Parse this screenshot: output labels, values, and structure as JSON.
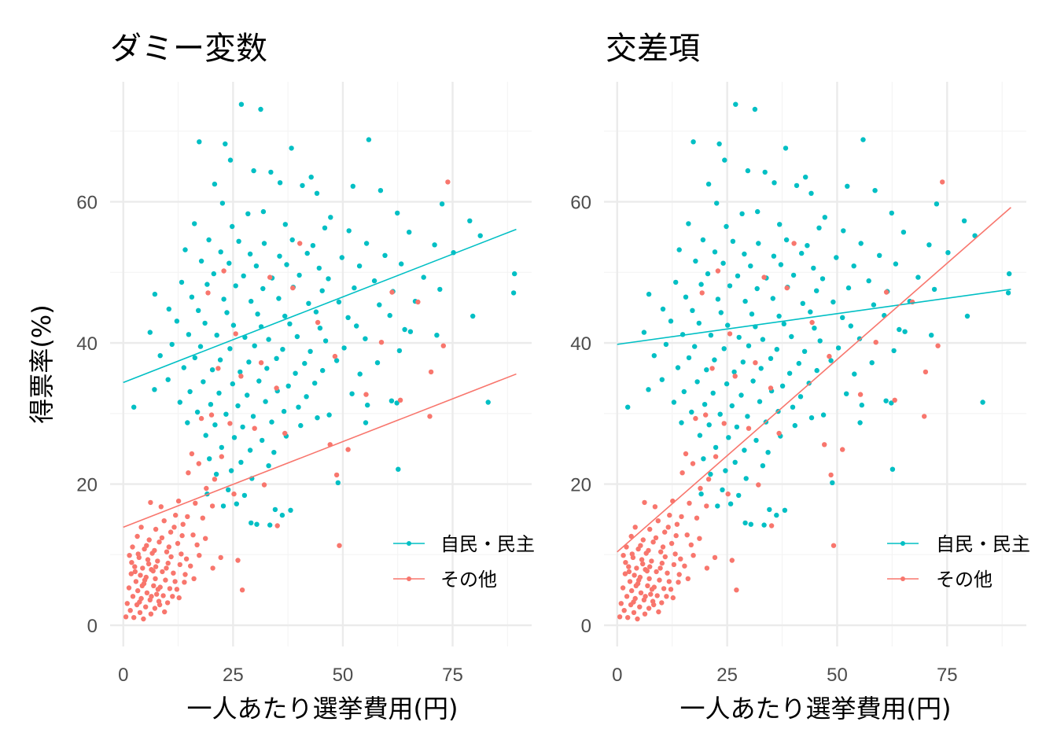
{
  "colors": {
    "ldp_dpj": "#00BFC4",
    "other": "#F8766D",
    "grid_major": "#EBEBEB",
    "grid_minor": "#F4F4F4",
    "tick": "#4D4D4D"
  },
  "chart_data": [
    {
      "type": "scatter",
      "title": "ダミー変数",
      "xlabel": "一人あたり選挙費用(円)",
      "ylabel": "得票率(%)",
      "xlim": [
        -3,
        93
      ],
      "ylim": [
        -3,
        77
      ],
      "xticks": [
        0,
        25,
        50,
        75
      ],
      "yticks": [
        0,
        20,
        40,
        60
      ],
      "legend": {
        "position": "bottom-right",
        "entries": [
          "自民・民主",
          "その他"
        ]
      },
      "fit_lines": [
        {
          "series": "自民・民主",
          "x": [
            0,
            89.5
          ],
          "y": [
            34.4,
            56.1
          ]
        },
        {
          "series": "その他",
          "x": [
            0,
            89.5
          ],
          "y": [
            13.9,
            35.6
          ]
        }
      ]
    },
    {
      "type": "scatter",
      "title": "交差項",
      "xlabel": "一人あたり選挙費用(円)",
      "ylabel": "",
      "xlim": [
        -3,
        93
      ],
      "ylim": [
        -3,
        77
      ],
      "xticks": [
        0,
        25,
        50,
        75
      ],
      "yticks": [
        0,
        20,
        40,
        60
      ],
      "legend": {
        "position": "bottom-right",
        "entries": [
          "自民・民主",
          "その他"
        ]
      },
      "fit_lines": [
        {
          "series": "自民・民主",
          "x": [
            0,
            89.5
          ],
          "y": [
            39.8,
            47.6
          ]
        },
        {
          "series": "その他",
          "x": [
            0,
            89.5
          ],
          "y": [
            10.4,
            59.2
          ]
        }
      ]
    }
  ],
  "points": {
    "自民・民主": [
      [
        26.9,
        73.8
      ],
      [
        31.3,
        73.1
      ],
      [
        17.3,
        68.5
      ],
      [
        23.2,
        68.2
      ],
      [
        55.9,
        68.8
      ],
      [
        38.3,
        67.6
      ],
      [
        24.4,
        65.9
      ],
      [
        29.7,
        64.4
      ],
      [
        33.6,
        64.2
      ],
      [
        42.8,
        63.5
      ],
      [
        20.8,
        62.5
      ],
      [
        35.7,
        62.7
      ],
      [
        40.8,
        62.3
      ],
      [
        52.3,
        62.2
      ],
      [
        58.6,
        61.6
      ],
      [
        44.1,
        61.2
      ],
      [
        22.6,
        59.8
      ],
      [
        28.4,
        58.3
      ],
      [
        31.9,
        58.6
      ],
      [
        47.2,
        57.8
      ],
      [
        62.4,
        58.4
      ],
      [
        72.6,
        59.7
      ],
      [
        78.9,
        57.3
      ],
      [
        16.2,
        56.9
      ],
      [
        24.8,
        56.5
      ],
      [
        36.9,
        56.8
      ],
      [
        45.9,
        56.3
      ],
      [
        51.4,
        55.9
      ],
      [
        65.1,
        55.7
      ],
      [
        81.3,
        55.2
      ],
      [
        19.5,
        54.6
      ],
      [
        26.3,
        54.4
      ],
      [
        32.1,
        54.1
      ],
      [
        38.5,
        54.6
      ],
      [
        43.2,
        53.8
      ],
      [
        55.4,
        54.1
      ],
      [
        70.9,
        53.9
      ],
      [
        14.1,
        53.2
      ],
      [
        22.2,
        52.9
      ],
      [
        28.9,
        52.6
      ],
      [
        35.6,
        52.3
      ],
      [
        41.9,
        52.7
      ],
      [
        49.8,
        52.1
      ],
      [
        59.6,
        52.4
      ],
      [
        75.2,
        52.8
      ],
      [
        17.8,
        51.6
      ],
      [
        24.1,
        51.3
      ],
      [
        30.3,
        50.9
      ],
      [
        37.2,
        51.1
      ],
      [
        44.6,
        50.6
      ],
      [
        53.8,
        50.9
      ],
      [
        63.3,
        51.2
      ],
      [
        20.6,
        49.8
      ],
      [
        27.4,
        49.5
      ],
      [
        33.9,
        49.2
      ],
      [
        40.1,
        49.6
      ],
      [
        46.7,
        49.1
      ],
      [
        57.2,
        48.8
      ],
      [
        68.4,
        49.3
      ],
      [
        89.1,
        49.8
      ],
      [
        13.3,
        48.6
      ],
      [
        19.1,
        48.3
      ],
      [
        25.6,
        48.1
      ],
      [
        31.8,
        47.7
      ],
      [
        38.7,
        47.9
      ],
      [
        45.3,
        47.4
      ],
      [
        52.6,
        47.8
      ],
      [
        61.4,
        47.3
      ],
      [
        72.1,
        47.6
      ],
      [
        88.9,
        47.1
      ],
      [
        7.2,
        46.9
      ],
      [
        15.6,
        46.5
      ],
      [
        22.9,
        46.2
      ],
      [
        29.1,
        45.9
      ],
      [
        35.4,
        46.3
      ],
      [
        42.2,
        45.6
      ],
      [
        49.1,
        45.8
      ],
      [
        58.3,
        45.4
      ],
      [
        66.5,
        45.9
      ],
      [
        10.4,
        44.8
      ],
      [
        17.1,
        44.6
      ],
      [
        23.6,
        44.3
      ],
      [
        30.6,
        44.1
      ],
      [
        36.8,
        43.8
      ],
      [
        43.9,
        44.4
      ],
      [
        51.2,
        43.6
      ],
      [
        60.7,
        43.9
      ],
      [
        79.6,
        43.8
      ],
      [
        12.2,
        43.1
      ],
      [
        18.6,
        42.8
      ],
      [
        25.1,
        42.5
      ],
      [
        31.4,
        42.3
      ],
      [
        37.9,
        42.7
      ],
      [
        44.8,
        42.1
      ],
      [
        53.1,
        42.4
      ],
      [
        64.1,
        41.9
      ],
      [
        6.1,
        41.5
      ],
      [
        14.9,
        41.2
      ],
      [
        21.3,
        41.1
      ],
      [
        27.7,
        40.8
      ],
      [
        33.1,
        40.5
      ],
      [
        39.6,
        40.9
      ],
      [
        46.1,
        40.3
      ],
      [
        55.1,
        40.6
      ],
      [
        71.4,
        41.1
      ],
      [
        11.1,
        39.8
      ],
      [
        17.6,
        39.5
      ],
      [
        24.3,
        39.2
      ],
      [
        29.9,
        39.6
      ],
      [
        36.3,
        39.1
      ],
      [
        42.6,
        38.8
      ],
      [
        50.3,
        39.3
      ],
      [
        62.9,
        38.9
      ],
      [
        8.4,
        38.2
      ],
      [
        16.3,
        37.9
      ],
      [
        22.1,
        37.6
      ],
      [
        28.6,
        37.3
      ],
      [
        34.9,
        37.8
      ],
      [
        41.3,
        37.1
      ],
      [
        48.6,
        37.5
      ],
      [
        57.9,
        37.2
      ],
      [
        13.8,
        36.5
      ],
      [
        20.3,
        36.2
      ],
      [
        26.6,
        35.9
      ],
      [
        32.7,
        36.4
      ],
      [
        39.2,
        35.7
      ],
      [
        45.4,
        36.1
      ],
      [
        53.9,
        35.6
      ],
      [
        10.2,
        34.8
      ],
      [
        18.2,
        34.5
      ],
      [
        24.9,
        34.2
      ],
      [
        30.9,
        34.6
      ],
      [
        37.6,
        33.9
      ],
      [
        43.6,
        34.3
      ],
      [
        7.1,
        33.4
      ],
      [
        15.2,
        33.1
      ],
      [
        21.8,
        32.9
      ],
      [
        28.2,
        32.6
      ],
      [
        35.1,
        33.2
      ],
      [
        41.7,
        32.4
      ],
      [
        52.1,
        32.8
      ],
      [
        12.9,
        31.6
      ],
      [
        19.9,
        31.3
      ],
      [
        26.1,
        31.1
      ],
      [
        32.4,
        31.7
      ],
      [
        39.9,
        30.9
      ],
      [
        55.6,
        31.2
      ],
      [
        62.3,
        31.5
      ],
      [
        83.1,
        31.6
      ],
      [
        2.4,
        30.9
      ],
      [
        16.9,
        30.2
      ],
      [
        23.4,
        29.9
      ],
      [
        29.6,
        29.6
      ],
      [
        36.6,
        30.3
      ],
      [
        46.9,
        29.8
      ],
      [
        14.6,
        28.7
      ],
      [
        20.9,
        28.4
      ],
      [
        27.2,
        28.1
      ],
      [
        33.8,
        28.8
      ],
      [
        40.4,
        28.3
      ],
      [
        18.8,
        26.9
      ],
      [
        25.3,
        26.6
      ],
      [
        31.6,
        26.2
      ],
      [
        37.1,
        26.8
      ],
      [
        22.4,
        25.2
      ],
      [
        28.9,
        24.8
      ],
      [
        34.3,
        24.5
      ],
      [
        19.6,
        23.6
      ],
      [
        26.8,
        23.1
      ],
      [
        33.1,
        22.6
      ],
      [
        62.6,
        22.1
      ],
      [
        21.2,
        21.4
      ],
      [
        24.6,
        21.9
      ],
      [
        29.3,
        20.8
      ],
      [
        48.9,
        20.2
      ],
      [
        23.9,
        19.2
      ],
      [
        27.6,
        18.4
      ],
      [
        19.1,
        18.6
      ],
      [
        25.8,
        17.2
      ],
      [
        22.8,
        16.9
      ],
      [
        34.6,
        16.4
      ],
      [
        29.1,
        14.5
      ],
      [
        30.4,
        14.3
      ],
      [
        33.4,
        14.2
      ],
      [
        38.1,
        16.3
      ],
      [
        36.2,
        15.6
      ],
      [
        55.2,
        28.7
      ],
      [
        61.1,
        31.8
      ],
      [
        44.2,
        29.4
      ],
      [
        65.4,
        41.6
      ]
    ],
    "その他": [
      [
        73.9,
        62.8
      ],
      [
        40.2,
        54.1
      ],
      [
        22.9,
        50.2
      ],
      [
        19.3,
        47.1
      ],
      [
        33.4,
        49.3
      ],
      [
        38.6,
        47.8
      ],
      [
        61.2,
        47.2
      ],
      [
        67.1,
        45.8
      ],
      [
        44.3,
        42.9
      ],
      [
        25.6,
        41.3
      ],
      [
        58.8,
        40.1
      ],
      [
        72.9,
        39.6
      ],
      [
        48.2,
        38.1
      ],
      [
        31.4,
        37.2
      ],
      [
        21.6,
        36.4
      ],
      [
        70.1,
        35.9
      ],
      [
        26.8,
        35.3
      ],
      [
        34.9,
        33.6
      ],
      [
        55.3,
        32.7
      ],
      [
        63.1,
        31.9
      ],
      [
        69.8,
        29.6
      ],
      [
        20.1,
        29.8
      ],
      [
        17.8,
        29.3
      ],
      [
        24.3,
        28.6
      ],
      [
        29.9,
        27.9
      ],
      [
        36.8,
        27.2
      ],
      [
        47.1,
        25.6
      ],
      [
        51.2,
        24.9
      ],
      [
        15.6,
        24.3
      ],
      [
        22.4,
        23.9
      ],
      [
        17.2,
        22.9
      ],
      [
        14.8,
        21.6
      ],
      [
        48.6,
        21.3
      ],
      [
        20.8,
        20.7
      ],
      [
        32.1,
        19.9
      ],
      [
        18.9,
        19.4
      ],
      [
        25.2,
        18.6
      ],
      [
        12.6,
        17.6
      ],
      [
        16.4,
        17.3
      ],
      [
        20.3,
        16.9
      ],
      [
        6.2,
        17.4
      ],
      [
        8.6,
        16.8
      ],
      [
        11.9,
        15.6
      ],
      [
        14.6,
        15.4
      ],
      [
        18.1,
        15.2
      ],
      [
        9.3,
        14.8
      ],
      [
        13.6,
        14.3
      ],
      [
        35.1,
        14.1
      ],
      [
        4.1,
        13.9
      ],
      [
        7.4,
        13.6
      ],
      [
        10.8,
        13.2
      ],
      [
        15.9,
        12.8
      ],
      [
        18.7,
        12.3
      ],
      [
        3.2,
        12.6
      ],
      [
        5.9,
        12.1
      ],
      [
        8.2,
        11.8
      ],
      [
        12.4,
        11.6
      ],
      [
        16.8,
        11.4
      ],
      [
        49.2,
        11.3
      ],
      [
        2.1,
        11.1
      ],
      [
        4.8,
        10.8
      ],
      [
        7.1,
        10.6
      ],
      [
        9.9,
        10.4
      ],
      [
        13.2,
        10.1
      ],
      [
        17.3,
        9.9
      ],
      [
        22.2,
        9.6
      ],
      [
        1.4,
        9.9
      ],
      [
        3.6,
        9.6
      ],
      [
        5.6,
        9.3
      ],
      [
        7.8,
        9.1
      ],
      [
        10.2,
        8.8
      ],
      [
        12.9,
        8.6
      ],
      [
        15.3,
        8.4
      ],
      [
        20.4,
        8.1
      ],
      [
        26.1,
        9.2
      ],
      [
        2.6,
        8.3
      ],
      [
        4.4,
        8.1
      ],
      [
        6.4,
        7.9
      ],
      [
        8.9,
        7.6
      ],
      [
        11.4,
        7.4
      ],
      [
        14.1,
        7.2
      ],
      [
        1.8,
        7.3
      ],
      [
        3.9,
        7.1
      ],
      [
        5.2,
        6.8
      ],
      [
        7.3,
        6.6
      ],
      [
        9.6,
        6.4
      ],
      [
        11.8,
        6.2
      ],
      [
        13.9,
        6.1
      ],
      [
        2.9,
        6.2
      ],
      [
        4.7,
        5.9
      ],
      [
        6.9,
        5.6
      ],
      [
        8.4,
        5.4
      ],
      [
        10.6,
        5.2
      ],
      [
        12.2,
        5.1
      ],
      [
        27.1,
        5.0
      ],
      [
        1.3,
        5.3
      ],
      [
        3.3,
        4.9
      ],
      [
        5.4,
        4.6
      ],
      [
        7.6,
        4.4
      ],
      [
        9.1,
        4.2
      ],
      [
        11.2,
        4.1
      ],
      [
        2.2,
        4.1
      ],
      [
        4.1,
        3.8
      ],
      [
        6.1,
        3.6
      ],
      [
        8.1,
        3.4
      ],
      [
        10.1,
        3.2
      ],
      [
        0.9,
        3.1
      ],
      [
        3.1,
        2.9
      ],
      [
        5.1,
        2.6
      ],
      [
        7.2,
        2.4
      ],
      [
        1.6,
        2.1
      ],
      [
        3.8,
        1.8
      ],
      [
        6.3,
        1.6
      ],
      [
        0.6,
        1.2
      ],
      [
        2.4,
        1.1
      ],
      [
        4.6,
        0.9
      ],
      [
        9.4,
        1.9
      ],
      [
        12.7,
        3.9
      ],
      [
        14.4,
        9.4
      ],
      [
        16.1,
        6.6
      ],
      [
        5.8,
        8.7
      ],
      [
        6.6,
        10.2
      ],
      [
        8.8,
        12.4
      ],
      [
        3.4,
        10.1
      ],
      [
        10.9,
        9.7
      ],
      [
        4.9,
        6.4
      ],
      [
        7.9,
        5.1
      ],
      [
        6.8,
        7.7
      ],
      [
        9.8,
        8.1
      ],
      [
        2.7,
        7.6
      ],
      [
        5.3,
        11.3
      ],
      [
        11.6,
        13.9
      ],
      [
        13.4,
        12.7
      ],
      [
        4.3,
        5.6
      ],
      [
        8.3,
        2.9
      ],
      [
        1.9,
        8.9
      ],
      [
        6.4,
        4.1
      ],
      [
        10.4,
        11.1
      ],
      [
        7.4,
        8.3
      ],
      [
        3.7,
        3.3
      ]
    ]
  }
}
